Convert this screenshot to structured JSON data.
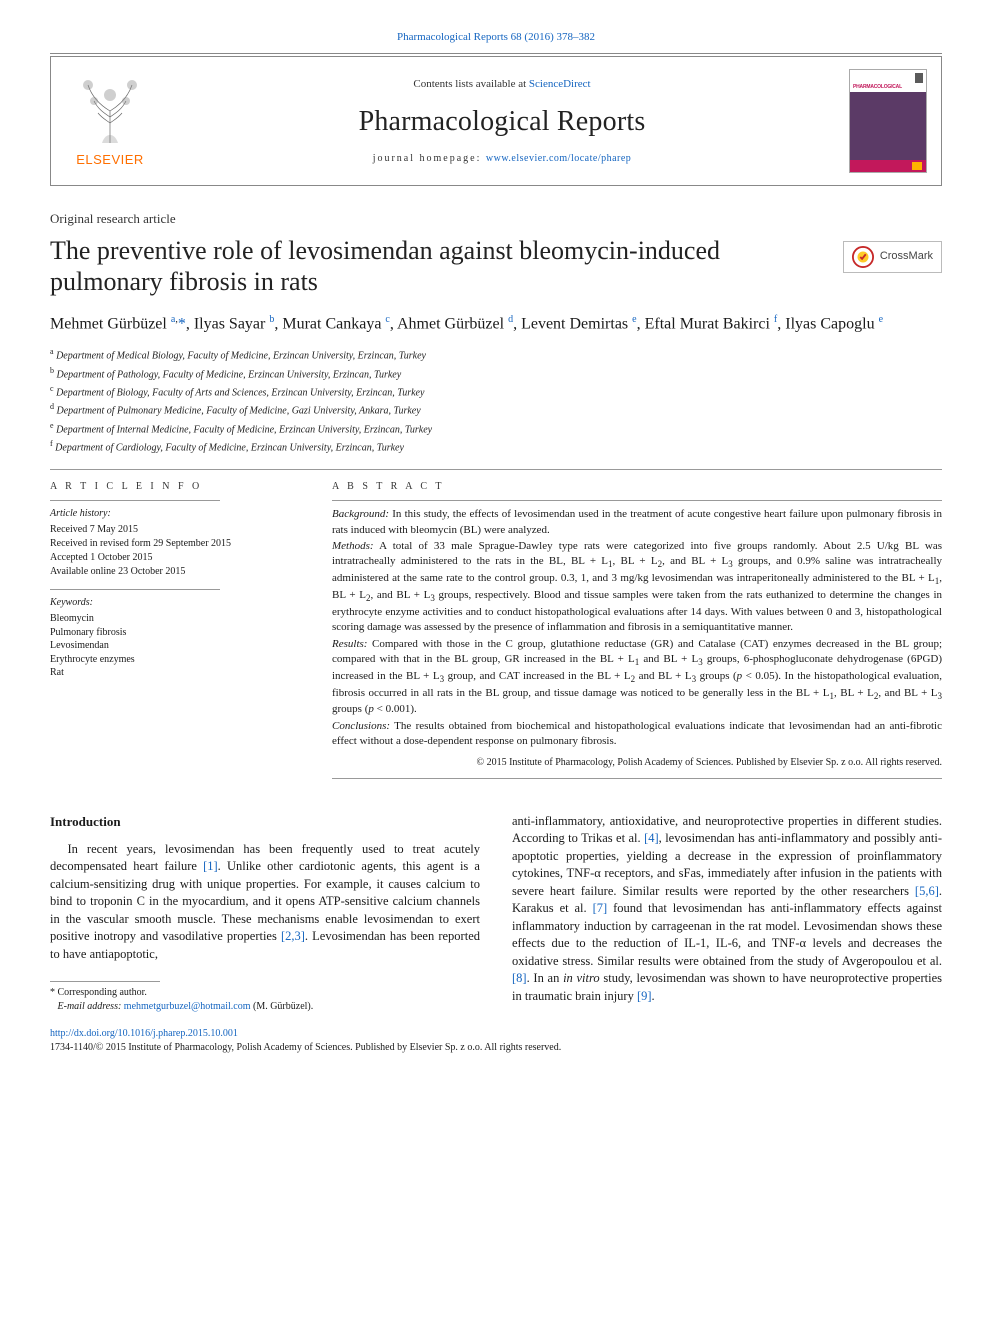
{
  "journal": {
    "top_citation": "Pharmacological Reports 68 (2016) 378–382",
    "contents_prefix": "Contents lists available at ",
    "contents_link_text": "ScienceDirect",
    "journal_name": "Pharmacological Reports",
    "homepage_label": "journal homepage: ",
    "homepage_url": "www.elsevier.com/locate/pharep",
    "elsevier_word": "ELSEVIER",
    "thumb_title": "PHARMACOLOGICAL"
  },
  "article": {
    "article_type": "Original research article",
    "title": "The preventive role of levosimendan against bleomycin-induced pulmonary fibrosis in rats",
    "crossmark_label": "CrossMark",
    "authors_html": "Mehmet Gürbüzel <sup><a>a</a>,</sup><span class='star'>*</span>, Ilyas Sayar <sup><a>b</a></sup>, Murat Cankaya <sup><a>c</a></sup>, Ahmet Gürbüzel <sup><a>d</a></sup>, Levent Demirtas <sup><a>e</a></sup>, Eftal Murat Bakirci <sup><a>f</a></sup>, Ilyas Capoglu <sup><a>e</a></sup>",
    "affiliations": [
      {
        "sup": "a",
        "text": "Department of Medical Biology, Faculty of Medicine, Erzincan University, Erzincan, Turkey"
      },
      {
        "sup": "b",
        "text": "Department of Pathology, Faculty of Medicine, Erzincan University, Erzincan, Turkey"
      },
      {
        "sup": "c",
        "text": "Department of Biology, Faculty of Arts and Sciences, Erzincan University, Erzincan, Turkey"
      },
      {
        "sup": "d",
        "text": "Department of Pulmonary Medicine, Faculty of Medicine, Gazi University, Ankara, Turkey"
      },
      {
        "sup": "e",
        "text": "Department of Internal Medicine, Faculty of Medicine, Erzincan University, Erzincan, Turkey"
      },
      {
        "sup": "f",
        "text": "Department of Cardiology, Faculty of Medicine, Erzincan University, Erzincan, Turkey"
      }
    ]
  },
  "article_info": {
    "heading": "A R T I C L E   I N F O",
    "history_label": "Article history:",
    "history": [
      "Received 7 May 2015",
      "Received in revised form 29 September 2015",
      "Accepted 1 October 2015",
      "Available online 23 October 2015"
    ],
    "keywords_label": "Keywords:",
    "keywords": [
      "Bleomycin",
      "Pulmonary fibrosis",
      "Levosimendan",
      "Erythrocyte enzymes",
      "Rat"
    ]
  },
  "abstract": {
    "heading": "A B S T R A C T",
    "sections": [
      {
        "label": "Background:",
        "text": " In this study, the effects of levosimendan used in the treatment of acute congestive heart failure upon pulmonary fibrosis in rats induced with bleomycin (BL) were analyzed."
      },
      {
        "label": "Methods:",
        "text": " A total of 33 male Sprague-Dawley type rats were categorized into five groups randomly. About 2.5 U/kg BL was intratracheally administered to the rats in the BL, BL + L₁, BL + L₂, and BL + L₃ groups, and 0.9% saline was intratracheally administered at the same rate to the control group. 0.3, 1, and 3 mg/kg levosimendan was intraperitoneally administered to the BL + L₁, BL + L₂, and BL + L₃ groups, respectively. Blood and tissue samples were taken from the rats euthanized to determine the changes in erythrocyte enzyme activities and to conduct histopathological evaluations after 14 days. With values between 0 and 3, histopathological scoring damage was assessed by the presence of inflammation and fibrosis in a semiquantitative manner."
      },
      {
        "label": "Results:",
        "text": " Compared with those in the C group, glutathione reductase (GR) and Catalase (CAT) enzymes decreased in the BL group; compared with that in the BL group, GR increased in the BL + L₁ and BL + L₃ groups, 6-phosphogluconate dehydrogenase (6PGD) increased in the BL + L₃ group, and CAT increased in the BL + L₂ and BL + L₃ groups (p < 0.05). In the histopathological evaluation, fibrosis occurred in all rats in the BL group, and tissue damage was noticed to be generally less in the BL + L₁, BL + L₂, and BL + L₃ groups (p < 0.001)."
      },
      {
        "label": "Conclusions:",
        "text": " The results obtained from biochemical and histopathological evaluations indicate that levosimendan had an anti-fibrotic effect without a dose-dependent response on pulmonary fibrosis."
      }
    ],
    "rights": "© 2015 Institute of Pharmacology, Polish Academy of Sciences. Published by Elsevier Sp. z o.o. All rights reserved."
  },
  "body": {
    "intro_heading": "Introduction",
    "para1_pre": "In recent years, levosimendan has been frequently used to treat acutely decompensated heart failure ",
    "ref1": "[1]",
    "para1_mid": ". Unlike other cardiotonic agents, this agent is a calcium-sensitizing drug with unique properties. For example, it causes calcium to bind to troponin C in the myocardium, and it opens ATP-sensitive calcium channels in the vascular smooth muscle. These mechanisms enable levosimendan to exert positive inotropy and vasodilative properties ",
    "ref23": "[2,3]",
    "para1_post": ". Levosimendan has been reported to have antiapoptotic, ",
    "para2_pre": "anti-inflammatory, antioxidative, and neuroprotective properties in different studies. According to Trikas et al. ",
    "ref4": "[4]",
    "para2_a": ", levosimendan has anti-inflammatory and possibly anti-apoptotic properties, yielding a decrease in the expression of proinflammatory cytokines, TNF-α receptors, and sFas, immediately after infusion in the patients with severe heart failure. Similar results were reported by the other researchers ",
    "ref56": "[5,6]",
    "para2_b": ". Karakus et al. ",
    "ref7": "[7]",
    "para2_c": " found that levosimendan has anti-inflammatory effects against inflammatory induction by carrageenan in the rat model. Levosimendan shows these effects due to the reduction of IL-1, IL-6, and TNF-α levels and decreases the oxidative stress. Similar results were obtained from the study of Avgeropoulou et al. ",
    "ref8": "[8]",
    "para2_d": ". In an ",
    "para2_e_ital": "in vitro",
    "para2_f": " study, levosimendan was shown to have neuroprotective properties in traumatic brain injury ",
    "ref9": "[9]",
    "para2_g": "."
  },
  "footnotes": {
    "corresponding": "* Corresponding author.",
    "email_label": "E-mail address:",
    "email": "mehmetgurbuzel@hotmail.com",
    "email_who": " (M. Gürbüzel)."
  },
  "footer": {
    "doi": "http://dx.doi.org/10.1016/j.pharep.2015.10.001",
    "issn_line": "1734-1140/© 2015 Institute of Pharmacology, Polish Academy of Sciences. Published by Elsevier Sp. z o.o. All rights reserved."
  },
  "colors": {
    "link": "#1565c0",
    "elsevier_orange": "#ff6f00",
    "text": "#1a1a1a",
    "rule": "#999999"
  }
}
